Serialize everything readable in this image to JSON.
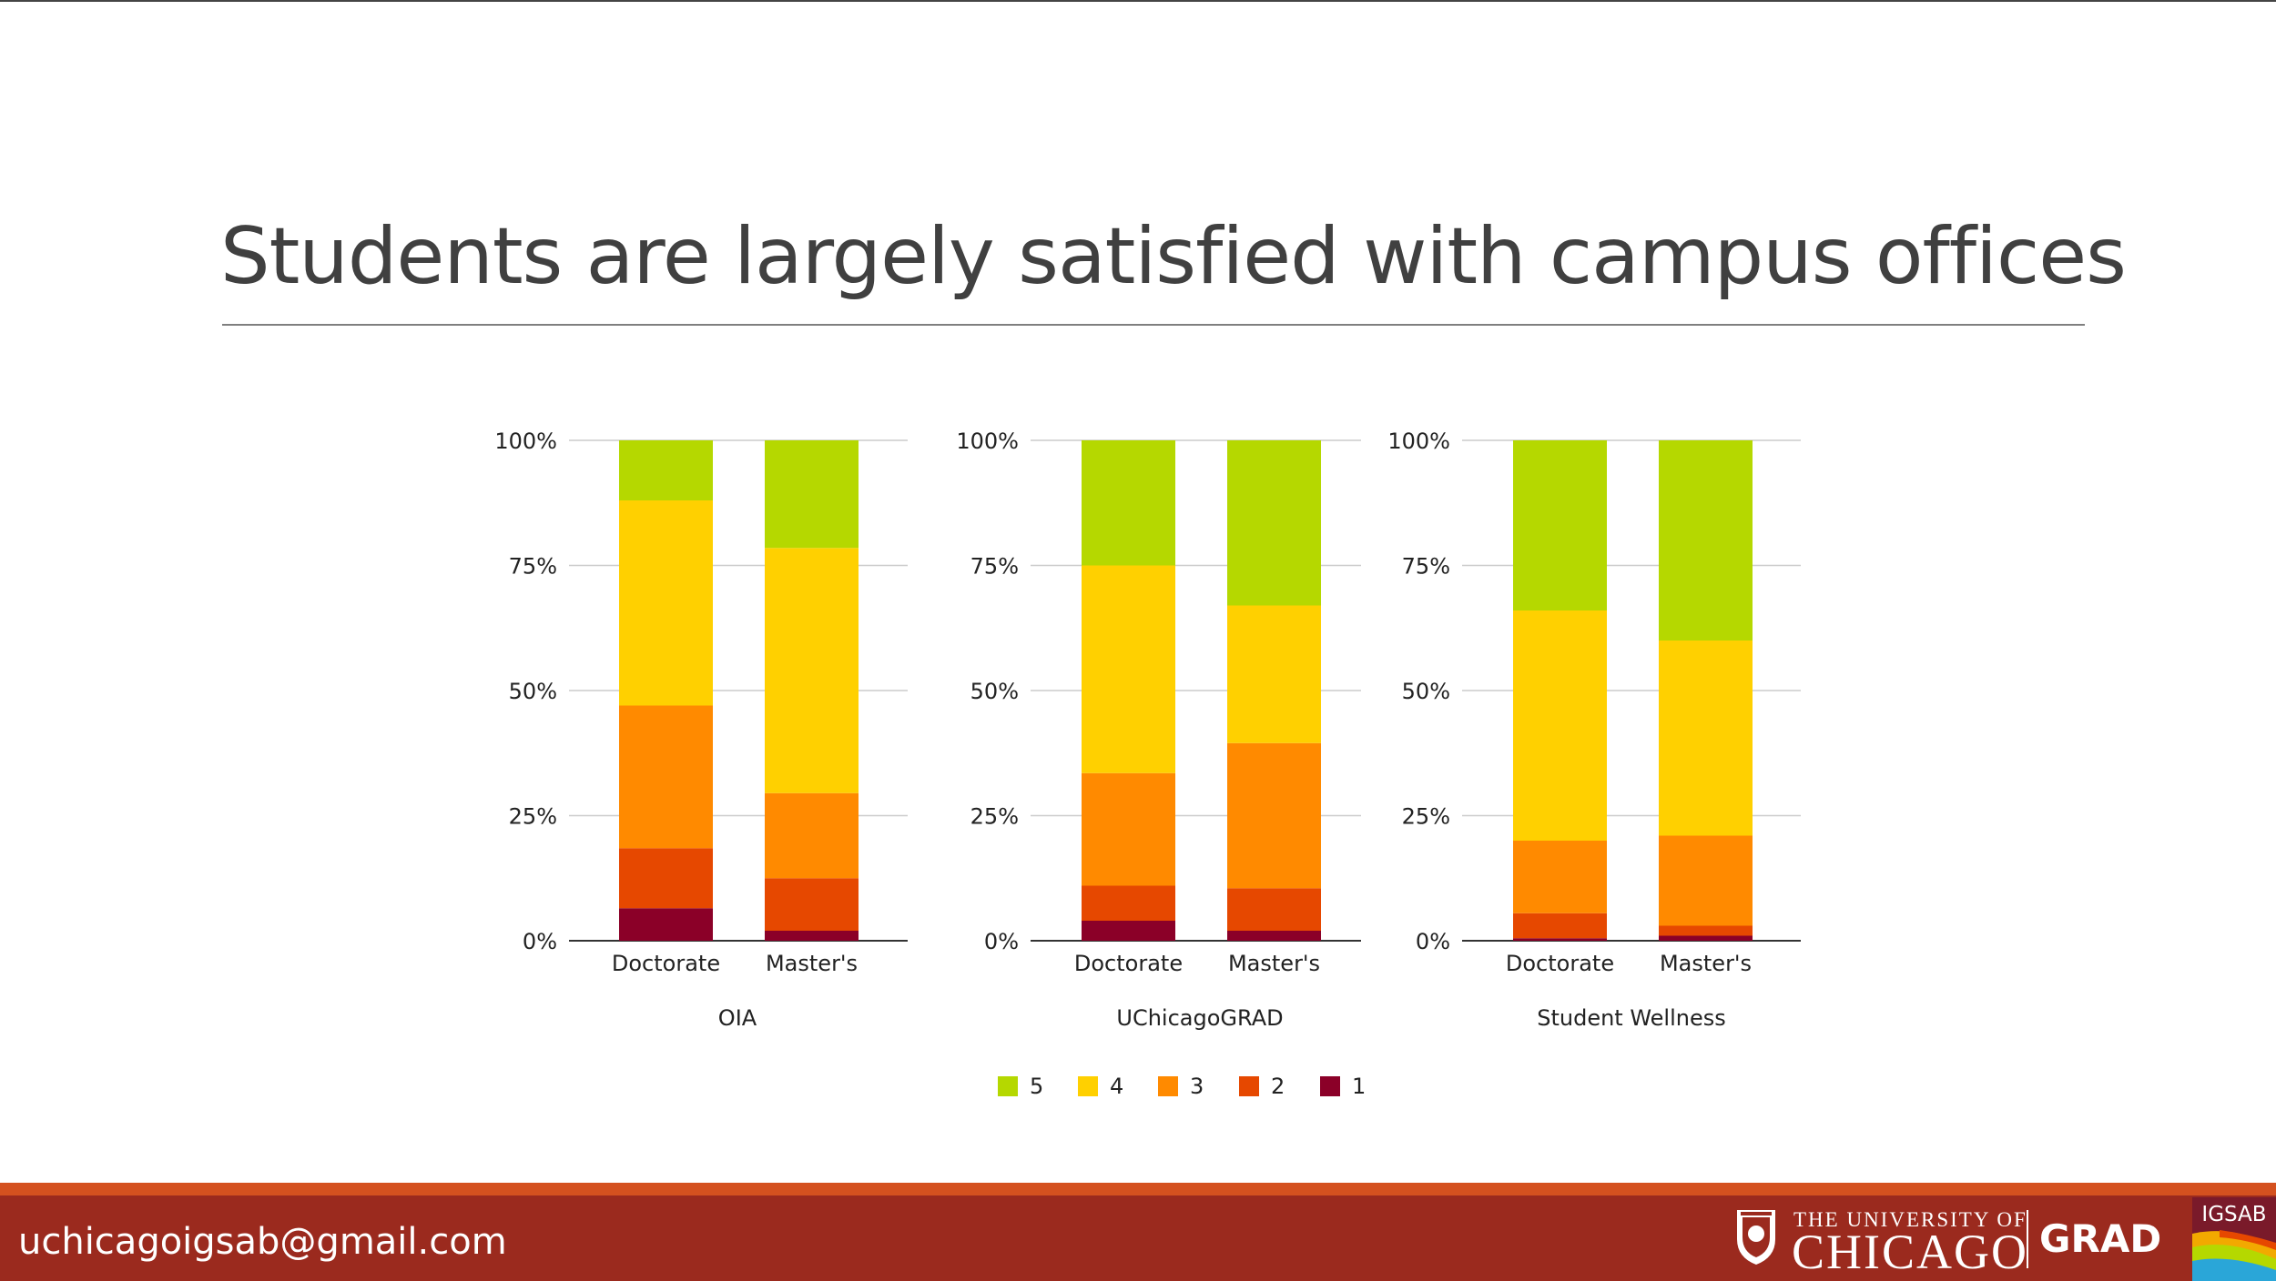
{
  "slide": {
    "title": "Students are largely satisfied with campus offices",
    "footer_email": "uchicagoigsab@gmail.com"
  },
  "branding": {
    "university_line1": "THE UNIVERSITY OF",
    "university_line2": "CHICAGO",
    "grad_label": "GRAD",
    "igsab_label": "IGSAB",
    "footer_color": "#9b2a1e",
    "footer_stripe_color": "#d4511f"
  },
  "chart_data": {
    "type": "bar",
    "stacked": true,
    "percent_stacked": true,
    "y_ticks": [
      "0%",
      "25%",
      "50%",
      "75%",
      "100%"
    ],
    "ylim": [
      0,
      100
    ],
    "grid": true,
    "legend_position": "bottom",
    "legend": [
      {
        "name": "5",
        "color": "#b5d800"
      },
      {
        "name": "4",
        "color": "#ffd000"
      },
      {
        "name": "3",
        "color": "#ff8a00"
      },
      {
        "name": "2",
        "color": "#e64800"
      },
      {
        "name": "1",
        "color": "#8b0028"
      }
    ],
    "panels": [
      {
        "name": "OIA",
        "categories": [
          "Doctorate",
          "Master's"
        ],
        "series": [
          {
            "name": "1",
            "values": [
              6.5,
              2
            ]
          },
          {
            "name": "2",
            "values": [
              12,
              10.5
            ]
          },
          {
            "name": "3",
            "values": [
              28.5,
              17
            ]
          },
          {
            "name": "4",
            "values": [
              41,
              49
            ]
          },
          {
            "name": "5",
            "values": [
              12,
              21.5
            ]
          }
        ]
      },
      {
        "name": "UChicagoGRAD",
        "categories": [
          "Doctorate",
          "Master's"
        ],
        "series": [
          {
            "name": "1",
            "values": [
              4,
              2
            ]
          },
          {
            "name": "2",
            "values": [
              7,
              8.5
            ]
          },
          {
            "name": "3",
            "values": [
              22.5,
              29
            ]
          },
          {
            "name": "4",
            "values": [
              41.5,
              27.5
            ]
          },
          {
            "name": "5",
            "values": [
              25,
              33
            ]
          }
        ]
      },
      {
        "name": "Student Wellness",
        "categories": [
          "Doctorate",
          "Master's"
        ],
        "series": [
          {
            "name": "1",
            "values": [
              0.5,
              1
            ]
          },
          {
            "name": "2",
            "values": [
              5,
              2
            ]
          },
          {
            "name": "3",
            "values": [
              14.5,
              18
            ]
          },
          {
            "name": "4",
            "values": [
              46,
              39
            ]
          },
          {
            "name": "5",
            "values": [
              34,
              40
            ]
          }
        ]
      }
    ]
  }
}
